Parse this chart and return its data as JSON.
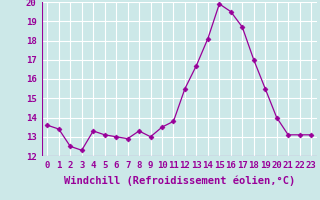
{
  "x": [
    0,
    1,
    2,
    3,
    4,
    5,
    6,
    7,
    8,
    9,
    10,
    11,
    12,
    13,
    14,
    15,
    16,
    17,
    18,
    19,
    20,
    21,
    22,
    23
  ],
  "y": [
    13.6,
    13.4,
    12.5,
    12.3,
    13.3,
    13.1,
    13.0,
    12.9,
    13.3,
    13.0,
    13.5,
    13.8,
    15.5,
    16.7,
    18.1,
    19.9,
    19.5,
    18.7,
    17.0,
    15.5,
    14.0,
    13.1,
    13.1,
    13.1
  ],
  "line_color": "#990099",
  "marker": "D",
  "marker_size": 2.5,
  "xlabel": "Windchill (Refroidissement éolien,°C)",
  "ylim": [
    12,
    20
  ],
  "yticks": [
    12,
    13,
    14,
    15,
    16,
    17,
    18,
    19,
    20
  ],
  "xticks": [
    0,
    1,
    2,
    3,
    4,
    5,
    6,
    7,
    8,
    9,
    10,
    11,
    12,
    13,
    14,
    15,
    16,
    17,
    18,
    19,
    20,
    21,
    22,
    23
  ],
  "bg_color": "#cce8e8",
  "grid_color": "#ffffff",
  "tick_label_size": 6.5,
  "xlabel_size": 7.5
}
